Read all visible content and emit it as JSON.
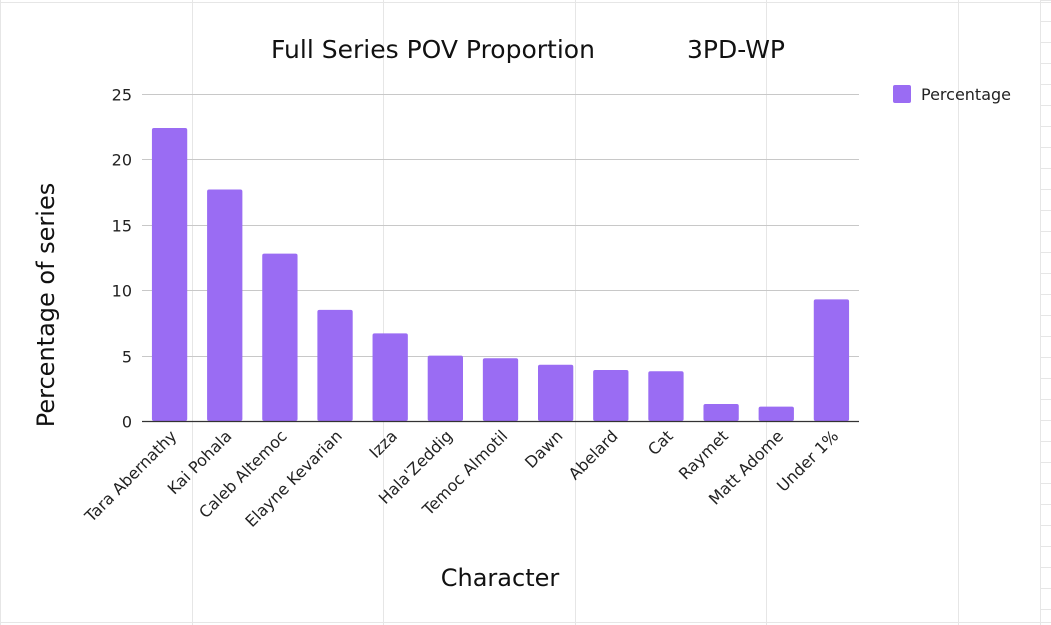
{
  "chart_data": {
    "type": "bar",
    "title": "Full Series POV Proportion",
    "subtitle": "3PD-WP",
    "xlabel": "Character",
    "ylabel": "Percentage of series",
    "ylim": [
      0,
      25
    ],
    "yticks": [
      0,
      5,
      10,
      15,
      20,
      25
    ],
    "grid": true,
    "legend_position": "top-right",
    "categories": [
      "Tara Abernathy",
      "Kai Pohala",
      "Caleb Altemoc",
      "Elayne Kevarian",
      "Izza",
      "Hala'Zeddig",
      "Temoc Almotil",
      "Dawn",
      "Abelard",
      "Cat",
      "Raymet",
      "Matt Adome",
      "Under 1%"
    ],
    "series": [
      {
        "name": "Percentage",
        "color": "#9a6cf3",
        "values": [
          22.4,
          17.7,
          12.8,
          8.5,
          6.7,
          5.0,
          4.8,
          4.3,
          3.9,
          3.8,
          1.3,
          1.1,
          9.3
        ]
      }
    ]
  }
}
